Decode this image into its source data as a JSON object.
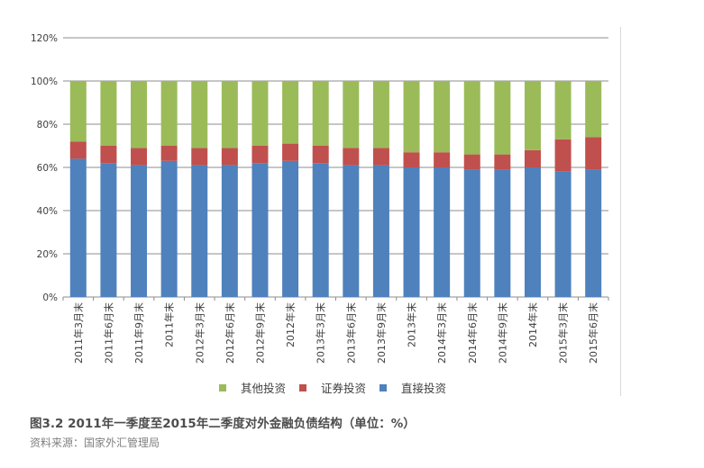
{
  "caption": "图3.2  2011年一季度至2015年二季度对外金融负债结构（单位：%）",
  "source": "资料来源：国家外汇管理局",
  "chart_data": {
    "type": "bar",
    "stacked": true,
    "categories": [
      "2011年3月末",
      "2011年6月末",
      "2011年9月末",
      "2011年末",
      "2012年3月末",
      "2012年6月末",
      "2012年9月末",
      "2012年末",
      "2013年3月末",
      "2013年6月末",
      "2013年9月末",
      "2013年末",
      "2014年3月末",
      "2014年6月末",
      "2014年9月末",
      "2014年末",
      "2015年3月末",
      "2015年6月末"
    ],
    "series": [
      {
        "name": "直接投资",
        "color": "#4f81bd",
        "values": [
          64,
          62,
          61,
          63,
          61,
          61,
          62,
          63,
          62,
          61,
          61,
          60,
          60,
          59,
          59,
          60,
          58,
          59
        ]
      },
      {
        "name": "证券投资",
        "color": "#c0504d",
        "values": [
          8,
          8,
          8,
          7,
          8,
          8,
          8,
          8,
          8,
          8,
          8,
          7,
          7,
          7,
          7,
          8,
          15,
          15
        ]
      },
      {
        "name": "其他投资",
        "color": "#9bbb59",
        "values": [
          28,
          30,
          31,
          30,
          31,
          31,
          30,
          29,
          30,
          31,
          31,
          33,
          33,
          34,
          34,
          32,
          27,
          26
        ]
      }
    ],
    "legend_order": [
      "其他投资",
      "证券投资",
      "直接投资"
    ],
    "ylim": [
      0,
      120
    ],
    "yticks": [
      "0%",
      "20%",
      "40%",
      "60%",
      "80%",
      "100%",
      "120%"
    ],
    "grid": true,
    "legend_position": "bottom"
  }
}
